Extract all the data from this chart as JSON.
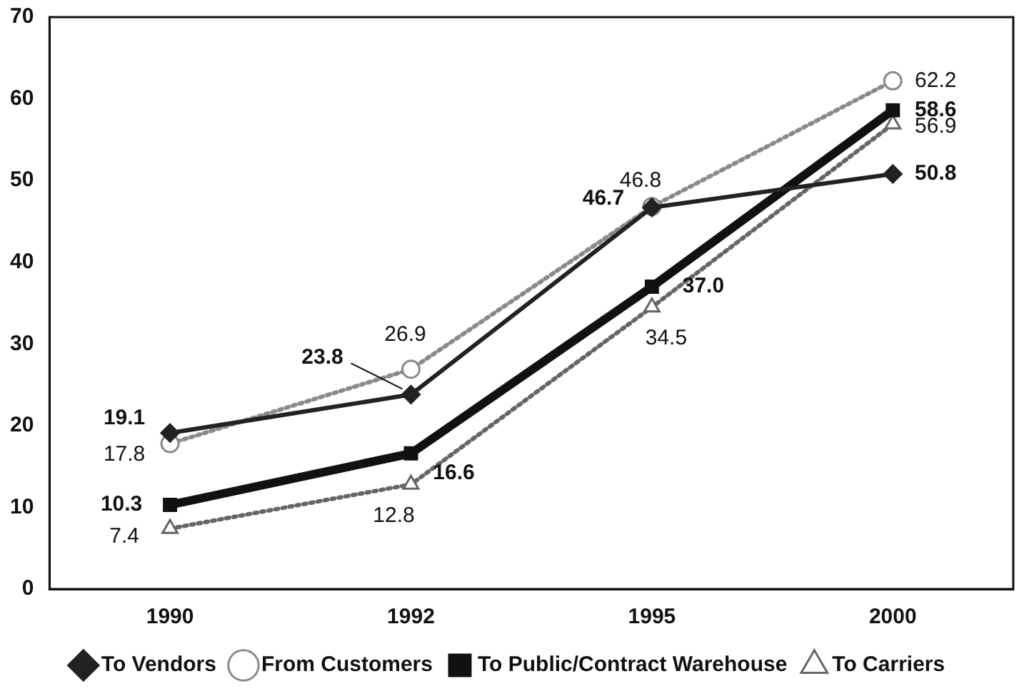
{
  "chart_data": {
    "type": "line",
    "categories": [
      "1990",
      "1992",
      "1995",
      "2000"
    ],
    "ylim": [
      0,
      70
    ],
    "yticks": [
      0,
      10,
      20,
      30,
      40,
      50,
      60,
      70
    ],
    "grid": false,
    "legend": "bottom",
    "series": [
      {
        "name": "To Vendors",
        "color": "#222222",
        "marker": "diamond",
        "line_style": "solid",
        "values": [
          19.1,
          23.8,
          46.7,
          50.8
        ],
        "value_labels": [
          "19.1",
          "23.8",
          "46.7",
          "50.8"
        ]
      },
      {
        "name": "From Customers",
        "color": "#8a8a8a",
        "marker": "circle",
        "line_style": "dotted",
        "values": [
          17.8,
          26.9,
          46.8,
          62.2
        ],
        "value_labels": [
          "17.8",
          "26.9",
          "46.8",
          "62.2"
        ]
      },
      {
        "name": "To Public/Contract Warehouse",
        "color": "#111111",
        "marker": "square",
        "line_style": "solid",
        "values": [
          10.3,
          16.6,
          37.0,
          58.6
        ],
        "value_labels": [
          "10.3",
          "16.6",
          "37.0",
          "58.6"
        ]
      },
      {
        "name": "To Carriers",
        "color": "#666666",
        "marker": "triangle",
        "line_style": "dotted",
        "values": [
          7.4,
          12.8,
          34.5,
          56.9
        ],
        "value_labels": [
          "7.4",
          "12.8",
          "34.5",
          "56.9"
        ]
      }
    ]
  }
}
